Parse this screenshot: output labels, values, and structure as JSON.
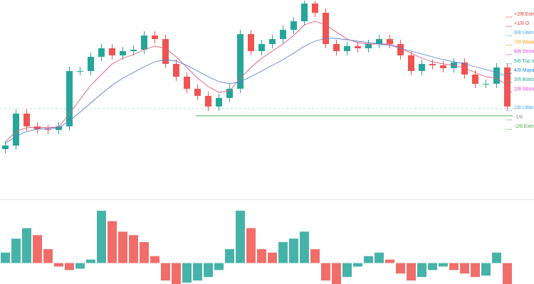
{
  "chart_data": {
    "type": "candlestick",
    "up_color": "#26a69a",
    "down_color": "#ef5350",
    "ylim": [
      0,
      280
    ],
    "open": [
      70,
      75,
      120,
      102,
      98,
      97,
      102,
      180,
      180,
      200,
      212,
      202,
      208,
      210,
      230,
      225,
      190,
      172,
      155,
      145,
      130,
      142,
      155,
      232,
      208,
      218,
      225,
      238,
      250,
      275,
      262,
      218,
      208,
      215,
      212,
      218,
      225,
      218,
      202,
      180,
      190,
      188,
      184,
      192,
      175,
      162,
      162,
      185
    ],
    "high": [
      81,
      126,
      126,
      108,
      104,
      108,
      186,
      186,
      206,
      218,
      218,
      214,
      216,
      236,
      236,
      231,
      196,
      178,
      161,
      151,
      148,
      161,
      238,
      238,
      224,
      231,
      244,
      256,
      279,
      279,
      268,
      224,
      221,
      221,
      224,
      231,
      231,
      224,
      208,
      196,
      196,
      194,
      198,
      198,
      181,
      168,
      191,
      191
    ],
    "low": [
      64,
      69,
      96,
      92,
      91,
      91,
      96,
      174,
      174,
      194,
      196,
      196,
      202,
      204,
      219,
      184,
      166,
      149,
      139,
      124,
      124,
      136,
      149,
      202,
      202,
      212,
      219,
      232,
      244,
      256,
      212,
      202,
      202,
      206,
      206,
      212,
      212,
      196,
      174,
      174,
      182,
      178,
      178,
      169,
      156,
      156,
      156,
      124
    ],
    "close": [
      75,
      120,
      102,
      98,
      97,
      102,
      180,
      180,
      200,
      212,
      202,
      208,
      210,
      230,
      225,
      190,
      172,
      155,
      145,
      130,
      142,
      155,
      232,
      208,
      218,
      225,
      238,
      250,
      275,
      262,
      218,
      208,
      215,
      212,
      218,
      225,
      218,
      202,
      180,
      190,
      188,
      184,
      192,
      175,
      162,
      162,
      185,
      130
    ],
    "series": [
      {
        "color": "#e05a7a",
        "values": [
          80,
          95,
          100,
          101,
          100,
          101,
          120,
          140,
          160,
          175,
          190,
          198,
          203,
          210,
          215,
          212,
          200,
          185,
          170,
          158,
          150,
          152,
          170,
          185,
          198,
          208,
          218,
          230,
          245,
          250,
          245,
          235,
          225,
          220,
          218,
          218,
          218,
          212,
          205,
          198,
          193,
          190,
          188,
          184,
          178,
          172,
          170,
          160
        ]
      },
      {
        "color": "#5b7fd6",
        "values": [
          78,
          88,
          95,
          98,
          99,
          100,
          110,
          122,
          135,
          148,
          160,
          170,
          178,
          186,
          193,
          196,
          194,
          188,
          180,
          172,
          165,
          162,
          165,
          172,
          180,
          188,
          196,
          205,
          215,
          222,
          226,
          226,
          224,
          222,
          220,
          218,
          216,
          212,
          208,
          204,
          200,
          196,
          193,
          190,
          186,
          182,
          178,
          172
        ]
      }
    ],
    "support_line": {
      "value": 117,
      "color": "#4caf50"
    },
    "dashed_line": {
      "value": 127,
      "color": "#9ccfc9"
    },
    "levels": [
      {
        "label": "+2/8 Extre",
        "color": "#e53935"
      },
      {
        "label": "+1/8 O",
        "color": "#e53935"
      },
      {
        "label": "8/8 Ultima",
        "color": "#42a5f5"
      },
      {
        "label": "7/8 Weak, S",
        "color": "#ff9800"
      },
      {
        "label": "6/8 Strong",
        "color": "#d63ad6"
      },
      {
        "label": "5/8 Top of",
        "color": "#26a69a"
      },
      {
        "label": "4/8 Major S",
        "color": "#1e88e5"
      },
      {
        "label": "3/8 Bottom o",
        "color": "#26a69a"
      },
      {
        "label": "2/8 Strong,",
        "color": "#d63ad6"
      },
      {
        "label": "1/8 Ultim",
        "color": "#42a5f5"
      },
      {
        "label": "-1/8",
        "color": "#888888"
      },
      {
        "label": "-2/8 Extre",
        "color": "#4caf50"
      }
    ],
    "histogram": {
      "ylim": [
        -30,
        88
      ],
      "values": [
        15,
        35,
        50,
        40,
        20,
        -5,
        -10,
        -8,
        5,
        75,
        60,
        45,
        40,
        30,
        10,
        -25,
        -30,
        -28,
        -25,
        -20,
        -10,
        20,
        75,
        50,
        20,
        15,
        30,
        35,
        45,
        20,
        -25,
        -30,
        -20,
        -5,
        10,
        15,
        5,
        -15,
        -25,
        -20,
        -10,
        -5,
        -10,
        -15,
        -20,
        -18,
        15,
        -30
      ]
    }
  }
}
